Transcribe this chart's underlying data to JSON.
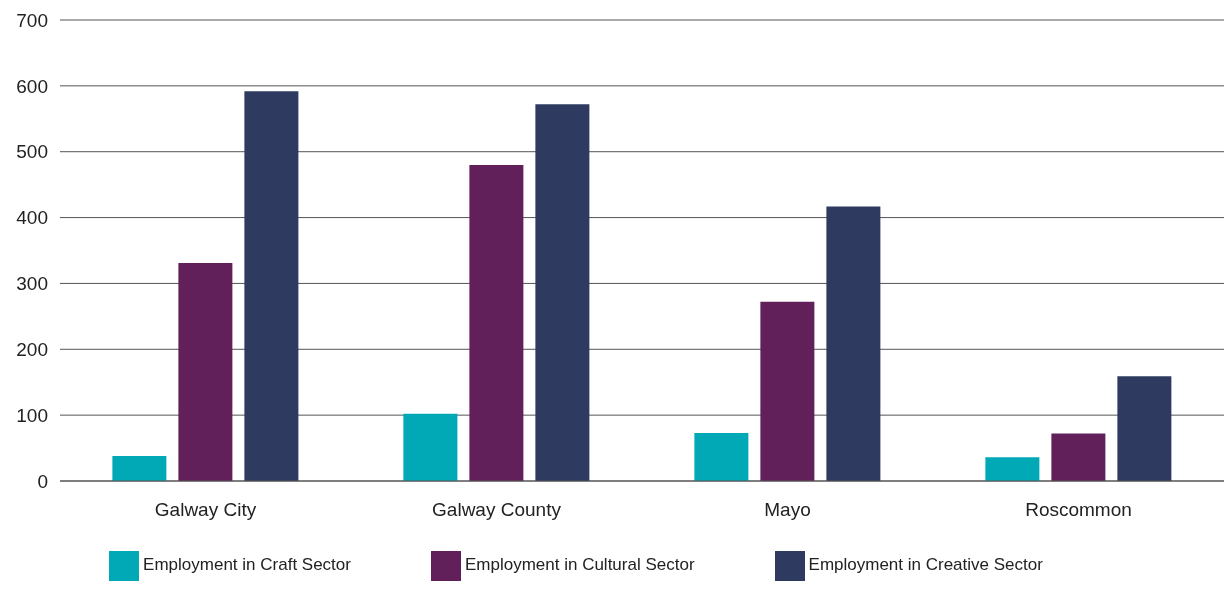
{
  "chart_data": {
    "type": "bar",
    "categories": [
      "Galway City",
      "Galway County",
      "Mayo",
      "Roscommon"
    ],
    "series": [
      {
        "name": "Employment in Craft Sector",
        "color": "#00a9b5",
        "values": [
          38,
          102,
          73,
          36
        ]
      },
      {
        "name": "Employment in Cultural Sector",
        "color": "#62205a",
        "values": [
          331,
          480,
          272,
          72
        ]
      },
      {
        "name": "Employment in Creative Sector",
        "color": "#2e3a60",
        "values": [
          592,
          572,
          417,
          159
        ]
      }
    ],
    "ylim": [
      0,
      700
    ],
    "yticks": [
      0,
      100,
      200,
      300,
      400,
      500,
      600,
      700
    ],
    "grid": "y",
    "legend": "bottom"
  }
}
